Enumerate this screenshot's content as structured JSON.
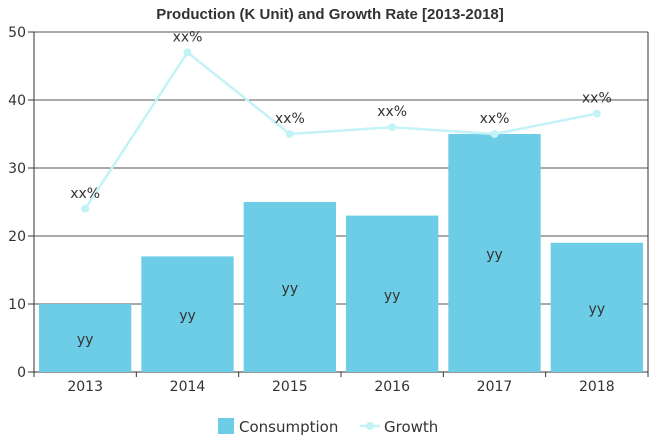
{
  "chart_data": {
    "type": "bar",
    "title": "Production (K Unit) and Growth Rate [2013-2018]",
    "categories": [
      "2013",
      "2014",
      "2015",
      "2016",
      "2017",
      "2018"
    ],
    "ylim": [
      0,
      50
    ],
    "yticks": [
      0,
      10,
      20,
      30,
      40,
      50
    ],
    "grid": true,
    "legend_position": "bottom",
    "series": [
      {
        "name": "Consumption",
        "type": "bar",
        "color": "#6ecde6",
        "values": [
          10,
          17,
          25,
          23,
          35,
          19
        ],
        "labels": [
          "yy",
          "yy",
          "yy",
          "yy",
          "yy",
          "yy"
        ]
      },
      {
        "name": "Growth",
        "type": "line",
        "color": "#c4f3f7",
        "values": [
          24,
          47,
          35,
          36,
          35,
          38
        ],
        "labels": [
          "xx%",
          "xx%",
          "xx%",
          "xx%",
          "xx%",
          "xx%"
        ]
      }
    ]
  }
}
